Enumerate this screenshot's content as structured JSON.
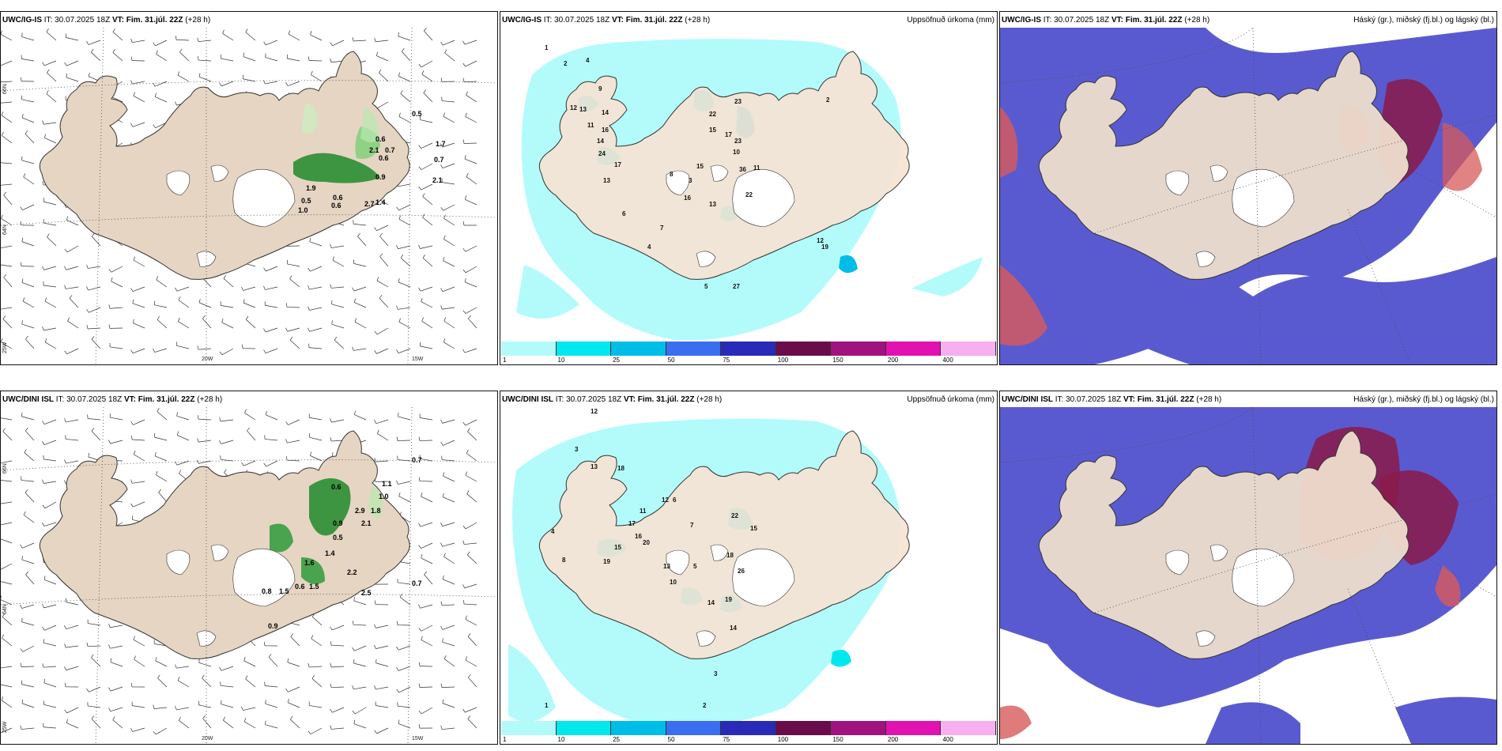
{
  "panels": {
    "p11": {
      "model": "UWC/IG-IS",
      "it_label": "IT:",
      "it": "30.07.2025 18Z",
      "vt_label": "VT:",
      "vt": "Fim. 31.júl. 22Z",
      "lead": "(+28 h)",
      "right": ""
    },
    "p12": {
      "model": "UWC/IG-IS",
      "it_label": "IT:",
      "it": "30.07.2025 18Z",
      "vt_label": "VT:",
      "vt": "Fim. 31.júl. 22Z",
      "lead": "(+28 h)",
      "right": "Uppsöfnuð úrkoma (mm)"
    },
    "p13": {
      "model": "UWC/IG-IS",
      "it_label": "IT:",
      "it": "30.07.2025 18Z",
      "vt_label": "VT:",
      "vt": "Fim. 31.júl. 22Z",
      "lead": "(+28 h)",
      "right": "Háský (gr.), miðský (fj.bl.) og lágský (bl.)"
    },
    "p21": {
      "model": "UWC/DINI ISL",
      "it_label": "IT:",
      "it": "30.07.2025 18Z",
      "vt_label": "VT:",
      "vt": "Fim. 31.júl. 22Z",
      "lead": "(+28 h)",
      "right": ""
    },
    "p22": {
      "model": "UWC/DINI ISL",
      "it_label": "IT:",
      "it": "30.07.2025 18Z",
      "vt_label": "VT:",
      "vt": "Fim. 31.júl. 22Z",
      "lead": "(+28 h)",
      "right": "Uppsöfnuð úrkoma (mm)"
    },
    "p23": {
      "model": "UWC/DINI ISL",
      "it_label": "IT:",
      "it": "30.07.2025 18Z",
      "vt_label": "VT:",
      "vt": "Fim. 31.júl. 22Z",
      "lead": "(+28 h)",
      "right": "Háský (gr.), miðský (fj.bl.) og lágský (bl.)"
    }
  },
  "axes": {
    "lat66": "66N",
    "lat64": "64N",
    "lon25": "25W",
    "lon20": "20W",
    "lon15": "15W"
  },
  "colorbar": {
    "ticks": [
      "1",
      "10",
      "25",
      "50",
      "75",
      "100",
      "150",
      "200",
      "400"
    ],
    "colors": [
      "#b3fbfb",
      "#00e8ee",
      "#00bde8",
      "#3a6df0",
      "#2a2ab8",
      "#6a0c4a",
      "#a0127e",
      "#e212b0",
      "#f6b0f0"
    ]
  },
  "labels": {
    "wind_top": [
      "0.5",
      "0.6",
      "0.7",
      "0.6",
      "0.9",
      "1.7",
      "0.7",
      "2.1",
      "1.9",
      "0.5",
      "1.0",
      "0.6",
      "0.6",
      "2.7",
      "1.4",
      "2.1"
    ],
    "wind_bot": [
      "0.7",
      "1.1",
      "1.0",
      "0.6",
      "1.8",
      "2.9",
      "0.9",
      "2.1",
      "0.5",
      "1.4",
      "1.6",
      "2.2",
      "0.7",
      "2.5",
      "1.5",
      "0.6",
      "1.5",
      "0.8",
      "0.9"
    ],
    "precip_top": [
      "1",
      "2",
      "4",
      "9",
      "12",
      "13",
      "14",
      "11",
      "16",
      "14",
      "24",
      "17",
      "13",
      "22",
      "23",
      "17",
      "23",
      "15",
      "10",
      "15",
      "36",
      "16",
      "13",
      "22",
      "11",
      "12",
      "19",
      "27",
      "5",
      "8",
      "3",
      "6",
      "7",
      "4",
      "2"
    ],
    "precip_bot": [
      "12",
      "3",
      "13",
      "18",
      "17",
      "16",
      "20",
      "15",
      "19",
      "13",
      "11",
      "12",
      "22",
      "15",
      "14",
      "26",
      "19",
      "14",
      "18",
      "6",
      "7",
      "4",
      "8",
      "10",
      "5",
      "2",
      "3",
      "1"
    ]
  }
}
